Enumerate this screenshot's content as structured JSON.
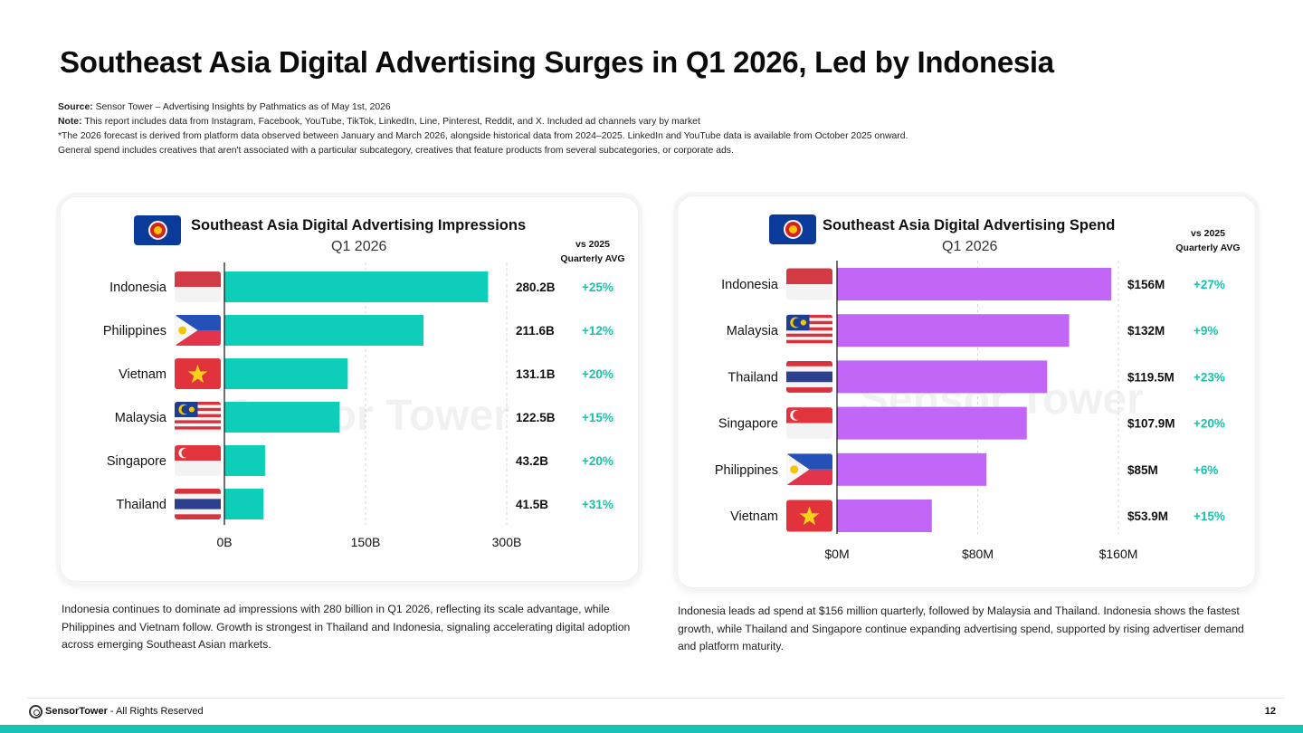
{
  "title": "Southeast Asia Digital Advertising Surges in Q1 2026, Led by Indonesia",
  "notes": {
    "source_label": "Source:",
    "source_text": "Sensor Tower – Advertising Insights by Pathmatics as of May 1st, 2026",
    "note_label": "Note:",
    "note_text": "This report includes data from Instagram, Facebook, YouTube, TikTok, LinkedIn, Line, Pinterest, Reddit, and X. Included ad channels vary by market",
    "line3": "*The 2026 forecast is derived from platform data observed between January and March 2026, alongside historical data from 2024–2025. LinkedIn and YouTube data is available from October 2025 onward.",
    "line4": "General spend includes creatives that aren't associated with a particular subcategory, creatives that feature products from several subcategories, or corporate ads."
  },
  "colors": {
    "impressions_bar": "#0dcfb9",
    "spend_bar": "#c266f7",
    "growth_text": "#15c4ad",
    "accent_bar": "#16c4b5"
  },
  "chart_data": [
    {
      "type": "bar",
      "orientation": "horizontal",
      "title": "Southeast Asia Digital Advertising Impressions",
      "subtitle": "Q1 2026",
      "change_header": [
        "vs 2025",
        "Quarterly AVG"
      ],
      "categories": [
        "Indonesia",
        "Philippines",
        "Vietnam",
        "Malaysia",
        "Singapore",
        "Thailand"
      ],
      "values": [
        280.2,
        211.6,
        131.1,
        122.5,
        43.2,
        41.5
      ],
      "value_labels": [
        "280.2B",
        "211.6B",
        "131.1B",
        "122.5B",
        "43.2B",
        "41.5B"
      ],
      "changes": [
        "+25%",
        "+12%",
        "+20%",
        "+15%",
        "+20%",
        "+31%"
      ],
      "flags": [
        "flag-indonesia",
        "flag-philippines",
        "flag-vietnam",
        "flag-malaysia",
        "flag-singapore",
        "flag-thailand"
      ],
      "xlim": [
        0,
        300
      ],
      "xticks": [
        0,
        150,
        300
      ],
      "xtick_labels": [
        "0B",
        "150B",
        "300B"
      ],
      "grid": true,
      "description": "Indonesia continues to dominate ad impressions with 280 billion in Q1 2026, reflecting its scale advantage, while Philippines and Vietnam follow. Growth is strongest in Thailand and Indonesia, signaling accelerating digital adoption across emerging Southeast Asian markets."
    },
    {
      "type": "bar",
      "orientation": "horizontal",
      "title": "Southeast Asia Digital Advertising Spend",
      "subtitle": "Q1 2026",
      "change_header": [
        "vs 2025",
        "Quarterly AVG"
      ],
      "categories": [
        "Indonesia",
        "Malaysia",
        "Thailand",
        "Singapore",
        "Philippines",
        "Vietnam"
      ],
      "values": [
        156,
        132,
        119.5,
        107.9,
        85,
        53.9
      ],
      "value_labels": [
        "$156M",
        "$132M",
        "$119.5M",
        "$107.9M",
        "$85M",
        "$53.9M"
      ],
      "changes": [
        "+27%",
        "+9%",
        "+23%",
        "+20%",
        "+6%",
        "+15%"
      ],
      "flags": [
        "flag-indonesia",
        "flag-malaysia",
        "flag-thailand",
        "flag-singapore",
        "flag-philippines",
        "flag-vietnam"
      ],
      "xlim": [
        0,
        160
      ],
      "xticks": [
        0,
        80,
        160
      ],
      "xtick_labels": [
        "$0M",
        "$80M",
        "$160M"
      ],
      "grid": true,
      "description": "Indonesia leads ad spend at $156 million quarterly, followed by Malaysia and Thailand. Indonesia shows the fastest growth, while Thailand and Singapore continue expanding advertising spend, supported by rising advertiser demand and platform maturity."
    }
  ],
  "watermark": "Sensor Tower",
  "footer": {
    "brand": "SensorTower",
    "rights": " - All Rights Reserved",
    "page": "12"
  }
}
